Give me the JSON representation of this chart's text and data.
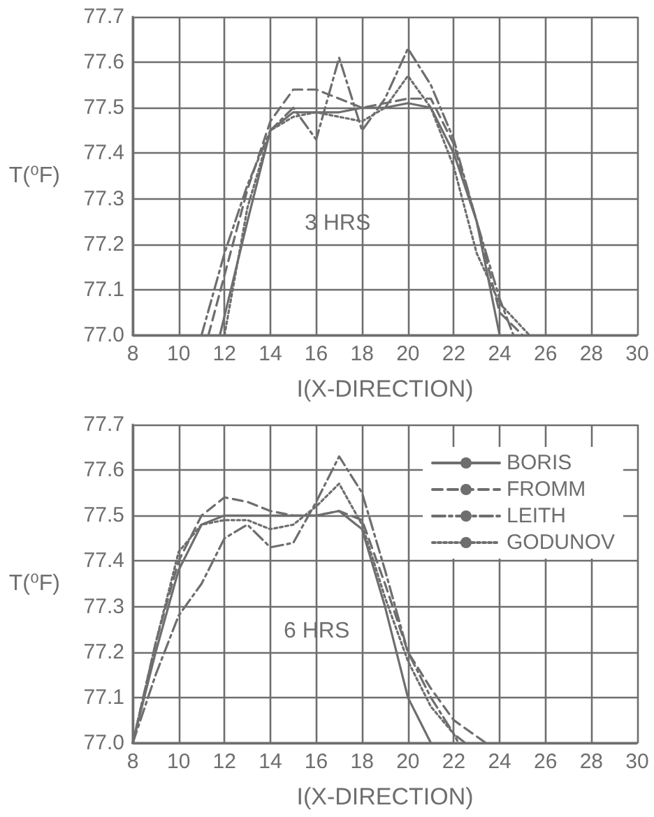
{
  "chart_data": [
    {
      "type": "line",
      "xlabel": "I(X-DIRECTION)",
      "ylabel": "T(⁰F)",
      "annotations": [
        "3 HRS"
      ],
      "xlim": [
        8,
        30
      ],
      "xticks": [
        8,
        10,
        12,
        14,
        16,
        18,
        20,
        22,
        24,
        26,
        28,
        30
      ],
      "ylim": [
        77,
        77.7
      ],
      "yticks": [
        {
          "value": 77,
          "label": "77.0"
        },
        77.1,
        77.2,
        77.3,
        77.4,
        77.5,
        77.6,
        77.7
      ],
      "grid": true,
      "legend": false,
      "marker": "none",
      "series": [
        {
          "color": "#6e6e6e",
          "line_style": "solid",
          "x": [
            11.8,
            13,
            14,
            15,
            16,
            17,
            18,
            19,
            20,
            21,
            22,
            23,
            24
          ],
          "values": [
            77.0,
            77.25,
            77.45,
            77.49,
            77.49,
            77.49,
            77.5,
            77.5,
            77.51,
            77.5,
            77.4,
            77.25,
            77.0
          ]
        },
        {
          "color": "#6e6e6e",
          "line_style": "dashed",
          "x": [
            11.3,
            13,
            14,
            15,
            16,
            17,
            18,
            19,
            20,
            21,
            22,
            23,
            24,
            25
          ],
          "values": [
            77.0,
            77.32,
            77.47,
            77.54,
            77.54,
            77.52,
            77.5,
            77.51,
            77.52,
            77.52,
            77.42,
            77.25,
            77.05,
            77.0
          ]
        },
        {
          "color": "#6e6e6e",
          "line_style": "dashdot",
          "x": [
            11,
            12,
            13,
            14,
            15,
            16,
            17,
            18,
            19,
            20,
            21,
            22,
            23,
            24,
            24.6
          ],
          "values": [
            77.0,
            77.18,
            77.33,
            77.45,
            77.5,
            77.43,
            77.61,
            77.45,
            77.52,
            77.63,
            77.55,
            77.43,
            77.25,
            77.08,
            77.0
          ]
        },
        {
          "color": "#6e6e6e",
          "line_style": "dotted",
          "x": [
            12,
            13,
            14,
            15,
            16,
            17,
            18,
            19,
            20,
            21,
            22,
            23,
            24,
            25.3
          ],
          "values": [
            77.0,
            77.28,
            77.45,
            77.48,
            77.49,
            77.48,
            77.47,
            77.5,
            77.57,
            77.5,
            77.37,
            77.18,
            77.07,
            77.0
          ]
        }
      ]
    },
    {
      "type": "line",
      "xlabel": "I(X-DIRECTION)",
      "ylabel": "T(⁰F)",
      "annotations": [
        "6 HRS"
      ],
      "xlim": [
        8,
        30
      ],
      "xticks": [
        8,
        10,
        12,
        14,
        16,
        18,
        20,
        22,
        24,
        26,
        28,
        30
      ],
      "ylim": [
        77,
        77.7
      ],
      "yticks": [
        {
          "value": 77,
          "label": "77.0"
        },
        77.1,
        77.2,
        77.3,
        77.4,
        77.5,
        77.6,
        77.7
      ],
      "grid": true,
      "legend": "top right",
      "marker": "none",
      "series": [
        {
          "name": "BORIS",
          "color": "#6e6e6e",
          "line_style": "solid",
          "x": [
            8,
            9,
            10,
            11,
            12,
            13,
            14,
            15,
            16,
            17,
            18,
            19,
            20,
            21
          ],
          "values": [
            77.0,
            77.2,
            77.38,
            77.48,
            77.5,
            77.5,
            77.5,
            77.5,
            77.5,
            77.51,
            77.47,
            77.3,
            77.1,
            77.0
          ]
        },
        {
          "name": "FROMM",
          "color": "#6e6e6e",
          "line_style": "dashed",
          "x": [
            8,
            9,
            10,
            11,
            12,
            13,
            14,
            15,
            16,
            17,
            18,
            19,
            20,
            21,
            22,
            23.4
          ],
          "values": [
            77.0,
            77.22,
            77.4,
            77.5,
            77.54,
            77.53,
            77.51,
            77.5,
            77.5,
            77.51,
            77.49,
            77.35,
            77.2,
            77.12,
            77.05,
            77.0
          ]
        },
        {
          "name": "LEITH",
          "color": "#6e6e6e",
          "line_style": "dashdot",
          "x": [
            8,
            9,
            10,
            11,
            12,
            13,
            14,
            15,
            16,
            17,
            18,
            19,
            20,
            21,
            22,
            22.5
          ],
          "values": [
            77.0,
            77.15,
            77.28,
            77.35,
            77.45,
            77.48,
            77.43,
            77.44,
            77.53,
            77.63,
            77.55,
            77.38,
            77.2,
            77.1,
            77.02,
            77.0
          ]
        },
        {
          "name": "GODUNOV",
          "color": "#6e6e6e",
          "line_style": "dotted",
          "x": [
            8,
            9,
            10,
            11,
            12,
            13,
            14,
            15,
            16,
            17,
            18,
            19,
            20,
            21,
            22,
            22.2
          ],
          "values": [
            77.0,
            77.22,
            77.42,
            77.48,
            77.49,
            77.49,
            77.47,
            77.48,
            77.52,
            77.57,
            77.48,
            77.32,
            77.18,
            77.08,
            77.02,
            77.0
          ]
        }
      ]
    }
  ]
}
